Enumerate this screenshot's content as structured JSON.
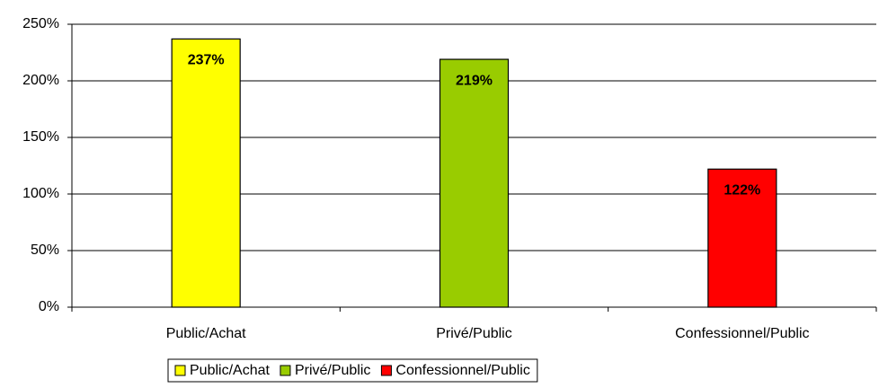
{
  "chart_data": {
    "type": "bar",
    "categories": [
      "Public/Achat",
      "Privé/Public",
      "Confessionnel/Public"
    ],
    "values": [
      237,
      219,
      122
    ],
    "value_labels": [
      "237%",
      "219%",
      "122%"
    ],
    "colors": [
      "#ffff00",
      "#99cc00",
      "#ff0000"
    ],
    "ylim": [
      0,
      250
    ],
    "yticks": [
      {
        "value": 0,
        "label": "0%"
      },
      {
        "value": 50,
        "label": "50%"
      },
      {
        "value": 100,
        "label": "100%"
      },
      {
        "value": 150,
        "label": "150%"
      },
      {
        "value": 200,
        "label": "200%"
      },
      {
        "value": 250,
        "label": "250%"
      }
    ],
    "grid": true,
    "legend": "bottom"
  }
}
